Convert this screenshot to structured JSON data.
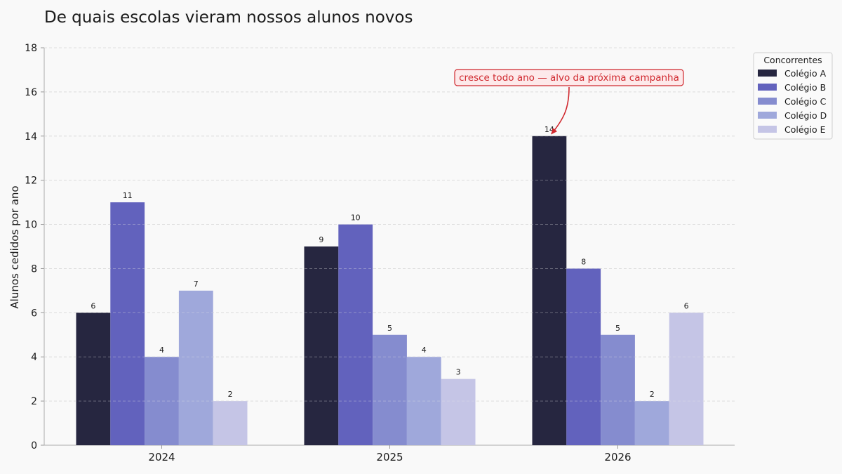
{
  "chart_data": {
    "type": "bar",
    "title": "De quais escolas vieram nossos alunos novos",
    "xlabel": "",
    "ylabel": "Alunos cedidos por ano",
    "categories": [
      "2024",
      "2025",
      "2026"
    ],
    "ylim": [
      0,
      18
    ],
    "yticks": [
      0,
      2,
      4,
      6,
      8,
      10,
      12,
      14,
      16,
      18
    ],
    "grid": true,
    "legend": {
      "title": "Concorrentes",
      "position": "right"
    },
    "series": [
      {
        "name": "Colégio A",
        "color": "#262640",
        "values": [
          6,
          9,
          14
        ]
      },
      {
        "name": "Colégio B",
        "color": "#6262bd",
        "values": [
          11,
          10,
          8
        ]
      },
      {
        "name": "Colégio C",
        "color": "#858ccf",
        "values": [
          4,
          5,
          5
        ]
      },
      {
        "name": "Colégio D",
        "color": "#9fa8db",
        "values": [
          7,
          4,
          2
        ]
      },
      {
        "name": "Colégio E",
        "color": "#c5c5e6",
        "values": [
          2,
          3,
          6
        ]
      }
    ],
    "annotation": {
      "text": "cresce todo ano — alvo da próxima campanha",
      "target_series": "Colégio A",
      "target_category": "2026",
      "color": "#d0282e"
    }
  }
}
